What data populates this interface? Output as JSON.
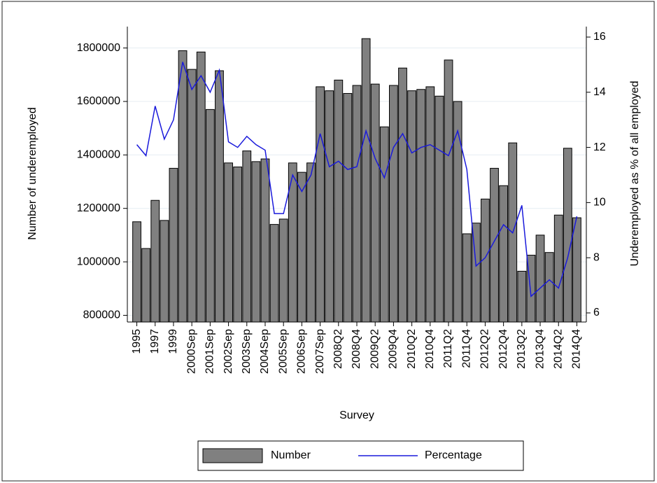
{
  "chart_data": {
    "type": "bar-line",
    "x_label": "Survey",
    "y_label": "Number of underemployed",
    "y2_label": "Underemployed as % of all employed",
    "categories": [
      "1995",
      null,
      "1997",
      null,
      "1999",
      null,
      "2000Sep",
      null,
      "2001Sep",
      null,
      "2002Sep",
      null,
      "2003Sep",
      null,
      "2004Sep",
      null,
      "2005Sep",
      null,
      "2006Sep",
      null,
      "2007Sep",
      null,
      "2008Q2",
      null,
      "2008Q4",
      null,
      "2009Q2",
      null,
      "2009Q4",
      null,
      "2010Q2",
      null,
      "2010Q4",
      null,
      "2011Q2",
      null,
      "2011Q4",
      null,
      "2012Q2",
      null,
      "2012Q4",
      null,
      "2013Q2",
      null,
      "2013Q4",
      null,
      "2014Q2",
      null,
      "2014Q4"
    ],
    "series": [
      {
        "name": "Number",
        "color": "#808080",
        "values": [
          1150000,
          1050000,
          1230000,
          1155000,
          1350000,
          1790000,
          1720000,
          1785000,
          1570000,
          1715000,
          1370000,
          1355000,
          1415000,
          1375000,
          1385000,
          1140000,
          1160000,
          1370000,
          1335000,
          1370000,
          1655000,
          1640000,
          1680000,
          1630000,
          1660000,
          1835000,
          1665000,
          1505000,
          1660000,
          1725000,
          1640000,
          1645000,
          1655000,
          1620000,
          1755000,
          1600000,
          1105000,
          1145000,
          1235000,
          1350000,
          1285000,
          1445000,
          965000,
          1025000,
          1100000,
          1035000,
          1175000,
          1425000,
          1165000
        ]
      },
      {
        "name": "Percentage",
        "color": "#1a1adb",
        "axis": "y2",
        "values": [
          12.1,
          11.7,
          13.5,
          12.3,
          13.0,
          15.1,
          14.1,
          14.6,
          14.0,
          14.8,
          12.2,
          12.0,
          12.4,
          12.1,
          11.9,
          9.6,
          9.6,
          11.0,
          10.4,
          11.0,
          12.5,
          11.3,
          11.5,
          11.2,
          11.3,
          12.6,
          11.6,
          10.9,
          12.0,
          12.5,
          11.8,
          12.0,
          12.1,
          11.9,
          11.7,
          12.6,
          11.2,
          7.7,
          8.0,
          8.6,
          9.2,
          8.9,
          9.9,
          6.6,
          6.9,
          7.2,
          6.9,
          8.0,
          9.5
        ]
      }
    ],
    "ylim": [
      775000,
      1880000
    ],
    "yticks": [
      800000,
      1000000,
      1200000,
      1400000,
      1600000,
      1800000
    ],
    "y2lim": [
      5.67,
      16.38
    ],
    "y2ticks": [
      6,
      8,
      10,
      12,
      14,
      16
    ],
    "grid": true
  }
}
